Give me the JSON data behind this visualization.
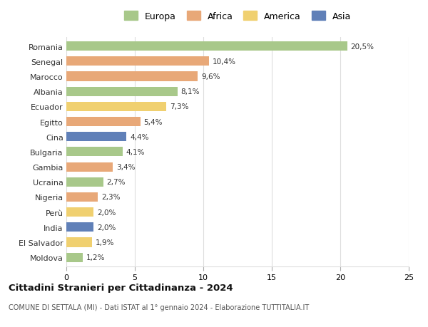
{
  "countries": [
    "Romania",
    "Senegal",
    "Marocco",
    "Albania",
    "Ecuador",
    "Egitto",
    "Cina",
    "Bulgaria",
    "Gambia",
    "Ucraina",
    "Nigeria",
    "Perù",
    "India",
    "El Salvador",
    "Moldova"
  ],
  "values": [
    20.5,
    10.4,
    9.6,
    8.1,
    7.3,
    5.4,
    4.4,
    4.1,
    3.4,
    2.7,
    2.3,
    2.0,
    2.0,
    1.9,
    1.2
  ],
  "labels": [
    "20,5%",
    "10,4%",
    "9,6%",
    "8,1%",
    "7,3%",
    "5,4%",
    "4,4%",
    "4,1%",
    "3,4%",
    "2,7%",
    "2,3%",
    "2,0%",
    "2,0%",
    "1,9%",
    "1,2%"
  ],
  "continents": [
    "Europa",
    "Africa",
    "Africa",
    "Europa",
    "America",
    "Africa",
    "Asia",
    "Europa",
    "Africa",
    "Europa",
    "Africa",
    "America",
    "Asia",
    "America",
    "Europa"
  ],
  "colors": {
    "Europa": "#a8c88a",
    "Africa": "#e8a878",
    "America": "#f0d070",
    "Asia": "#6080b8"
  },
  "legend_order": [
    "Europa",
    "Africa",
    "America",
    "Asia"
  ],
  "title": "Cittadini Stranieri per Cittadinanza - 2024",
  "subtitle": "COMUNE DI SETTALA (MI) - Dati ISTAT al 1° gennaio 2024 - Elaborazione TUTTITALIA.IT",
  "xlim": [
    0,
    25
  ],
  "xticks": [
    0,
    5,
    10,
    15,
    20,
    25
  ],
  "background_color": "#ffffff",
  "grid_color": "#dddddd"
}
